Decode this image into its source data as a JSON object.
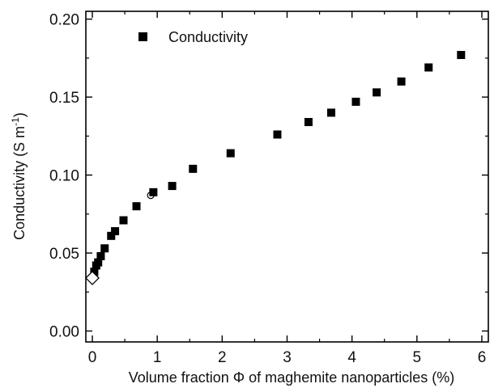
{
  "chart_data": {
    "type": "scatter",
    "xlabel": "Volume fraction Φ of maghemite nanoparticles (%)",
    "ylabel": "Conductivity (S m",
    "ylabel_sup": "-1",
    "ylabel_close": ")",
    "xlim": [
      -0.1,
      6.1
    ],
    "ylim": [
      -0.007,
      0.205
    ],
    "x_ticks": [
      0,
      1,
      2,
      3,
      4,
      5,
      6
    ],
    "x_tick_labels": [
      "0",
      "1",
      "2",
      "3",
      "4",
      "5",
      "6"
    ],
    "y_ticks": [
      0.0,
      0.05,
      0.1,
      0.15,
      0.2
    ],
    "y_tick_labels": [
      "0.00",
      "0.05",
      "0.10",
      "0.15",
      "0.20"
    ],
    "legend": {
      "position": "top-left",
      "entries": [
        "Conductivity"
      ]
    },
    "series": [
      {
        "name": "Conductivity",
        "marker": "filled-square",
        "color": "#000000",
        "x": [
          0.03,
          0.06,
          0.09,
          0.13,
          0.19,
          0.29,
          0.35,
          0.48,
          0.68,
          0.94,
          1.23,
          1.55,
          2.13,
          2.85,
          3.33,
          3.68,
          4.06,
          4.38,
          4.76,
          5.18,
          5.68
        ],
        "y": [
          0.038,
          0.042,
          0.044,
          0.048,
          0.053,
          0.061,
          0.064,
          0.071,
          0.08,
          0.089,
          0.093,
          0.104,
          0.114,
          0.126,
          0.134,
          0.14,
          0.147,
          0.153,
          0.16,
          0.169,
          0.177
        ]
      }
    ],
    "extra_markers": [
      {
        "shape": "open-diamond",
        "x": 0.0,
        "y": 0.034
      },
      {
        "shape": "open-circle",
        "x": 0.9,
        "y": 0.087
      }
    ]
  }
}
